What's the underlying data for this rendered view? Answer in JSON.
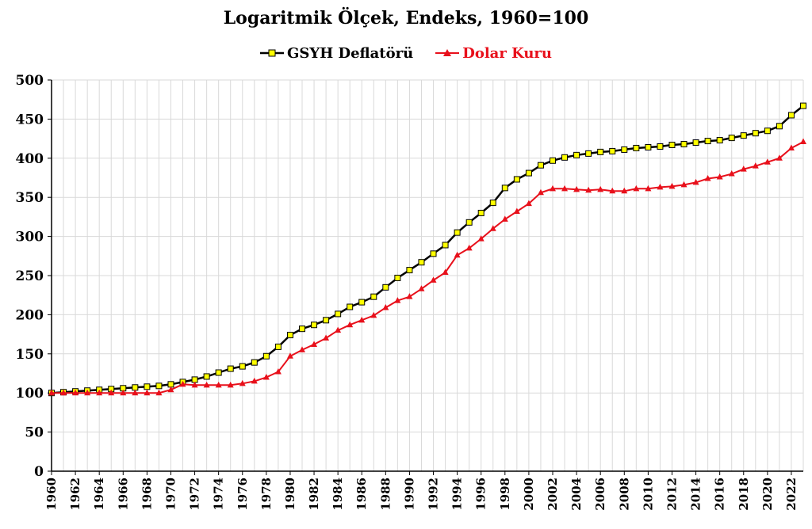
{
  "chart_data": {
    "type": "line",
    "title": "Logaritmik Ölçek, Endeks, 1960=100",
    "xlabel": "",
    "ylabel": "",
    "ylim": [
      0,
      500
    ],
    "xlim": [
      1960,
      2023
    ],
    "yticks": [
      0,
      50,
      100,
      150,
      200,
      250,
      300,
      350,
      400,
      450,
      500
    ],
    "xticks": [
      1960,
      1962,
      1964,
      1966,
      1968,
      1970,
      1972,
      1974,
      1976,
      1978,
      1980,
      1982,
      1984,
      1986,
      1988,
      1990,
      1992,
      1994,
      1996,
      1998,
      2000,
      2002,
      2004,
      2006,
      2008,
      2010,
      2012,
      2014,
      2016,
      2018,
      2020,
      2022
    ],
    "grid": true,
    "legend_position": "top",
    "x": [
      1960,
      1961,
      1962,
      1963,
      1964,
      1965,
      1966,
      1967,
      1968,
      1969,
      1970,
      1971,
      1972,
      1973,
      1974,
      1975,
      1976,
      1977,
      1978,
      1979,
      1980,
      1981,
      1982,
      1983,
      1984,
      1985,
      1986,
      1987,
      1988,
      1989,
      1990,
      1991,
      1992,
      1993,
      1994,
      1995,
      1996,
      1997,
      1998,
      1999,
      2000,
      2001,
      2002,
      2003,
      2004,
      2005,
      2006,
      2007,
      2008,
      2009,
      2010,
      2011,
      2012,
      2013,
      2014,
      2015,
      2016,
      2017,
      2018,
      2019,
      2020,
      2021,
      2022,
      2023
    ],
    "series": [
      {
        "name": "GSYH Deflatörü",
        "color": "#000000",
        "marker": "square",
        "marker_color": "#ffff00",
        "values": [
          100,
          101,
          102,
          103,
          104,
          105,
          106,
          107,
          108,
          109,
          111,
          114,
          117,
          121,
          126,
          131,
          134,
          139,
          147,
          159,
          174,
          182,
          187,
          193,
          201,
          210,
          216,
          223,
          235,
          247,
          257,
          267,
          278,
          289,
          305,
          318,
          330,
          343,
          362,
          373,
          381,
          391,
          397,
          401,
          404,
          406,
          408,
          409,
          411,
          413,
          414,
          415,
          417,
          418,
          420,
          422,
          423,
          426,
          429,
          432,
          435,
          441,
          455,
          467
        ]
      },
      {
        "name": "Dolar Kuru",
        "color": "#e8101b",
        "marker": "triangle",
        "marker_color": "#e8101b",
        "values": [
          100,
          100,
          100,
          100,
          100,
          100,
          100,
          100,
          100,
          100,
          104,
          111,
          110,
          110,
          110,
          110,
          112,
          115,
          120,
          127,
          147,
          155,
          162,
          170,
          180,
          187,
          193,
          199,
          209,
          218,
          223,
          233,
          244,
          254,
          276,
          285,
          297,
          310,
          322,
          332,
          342,
          356,
          361,
          361,
          360,
          359,
          360,
          358,
          358,
          361,
          361,
          363,
          364,
          366,
          369,
          374,
          376,
          380,
          386,
          390,
          395,
          400,
          413,
          421
        ]
      }
    ]
  }
}
